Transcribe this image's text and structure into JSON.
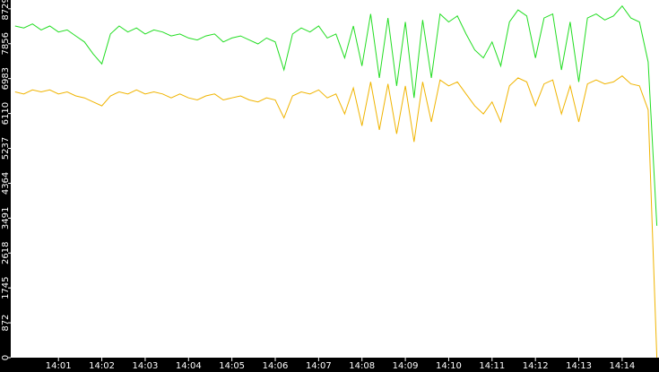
{
  "chart_data": {
    "type": "line",
    "x": [
      0,
      0.2,
      0.4,
      0.6,
      0.8,
      1,
      1.2,
      1.4,
      1.6,
      1.8,
      2,
      2.2,
      2.4,
      2.6,
      2.8,
      3,
      3.2,
      3.4,
      3.6,
      3.8,
      4,
      4.2,
      4.4,
      4.6,
      4.8,
      5,
      5.2,
      5.4,
      5.6,
      5.8,
      6,
      6.2,
      6.4,
      6.6,
      6.8,
      7,
      7.2,
      7.4,
      7.6,
      7.8,
      8,
      8.2,
      8.4,
      8.6,
      8.8,
      9,
      9.2,
      9.4,
      9.6,
      9.8,
      10,
      10.2,
      10.4,
      10.6,
      10.8,
      11,
      11.2,
      11.4,
      11.6,
      11.8,
      12,
      12.2,
      12.4,
      12.6,
      12.8,
      13,
      13.2,
      13.4,
      13.6,
      13.8,
      14,
      14.2,
      14.4,
      14.6,
      14.8
    ],
    "series": [
      {
        "color": "#22dd22",
        "values": [
          8300,
          8250,
          8350,
          8200,
          8300,
          8150,
          8200,
          8050,
          7900,
          7600,
          7350,
          8100,
          8300,
          8150,
          8250,
          8100,
          8200,
          8150,
          8050,
          8100,
          8000,
          7950,
          8050,
          8100,
          7900,
          8000,
          8050,
          7950,
          7850,
          8000,
          7900,
          7200,
          8100,
          8250,
          8150,
          8300,
          8000,
          8100,
          7500,
          8300,
          7300,
          8600,
          7000,
          8500,
          6800,
          8400,
          6500,
          8450,
          7000,
          8600,
          8400,
          8550,
          8100,
          7700,
          7500,
          7900,
          7300,
          8400,
          8700,
          8550,
          7500,
          8500,
          8600,
          7200,
          8400,
          6900,
          8500,
          8600,
          8450,
          8550,
          8800,
          8500,
          8400,
          7400,
          3300
        ]
      },
      {
        "color": "#f0b400",
        "values": [
          6650,
          6600,
          6700,
          6650,
          6700,
          6600,
          6650,
          6550,
          6500,
          6400,
          6300,
          6550,
          6650,
          6600,
          6700,
          6600,
          6650,
          6600,
          6500,
          6600,
          6500,
          6450,
          6550,
          6600,
          6450,
          6500,
          6550,
          6450,
          6400,
          6500,
          6450,
          6000,
          6550,
          6650,
          6600,
          6700,
          6500,
          6600,
          6100,
          6750,
          5800,
          6900,
          5700,
          6850,
          5600,
          6800,
          5400,
          6900,
          5900,
          6950,
          6800,
          6900,
          6600,
          6300,
          6100,
          6400,
          5900,
          6800,
          7000,
          6900,
          6300,
          6850,
          6950,
          6100,
          6800,
          5900,
          6850,
          6950,
          6850,
          6900,
          7050,
          6850,
          6800,
          6200,
          0
        ]
      }
    ],
    "xlim": [
      -0.1,
      14.85
    ],
    "xticks": [
      {
        "value": 1,
        "label": "14:01"
      },
      {
        "value": 2,
        "label": "14:02"
      },
      {
        "value": 3,
        "label": "14:03"
      },
      {
        "value": 4,
        "label": "14:04"
      },
      {
        "value": 5,
        "label": "14:05"
      },
      {
        "value": 6,
        "label": "14:06"
      },
      {
        "value": 7,
        "label": "14:07"
      },
      {
        "value": 8,
        "label": "14:08"
      },
      {
        "value": 9,
        "label": "14:09"
      },
      {
        "value": 10,
        "label": "14:10"
      },
      {
        "value": 11,
        "label": "14:11"
      },
      {
        "value": 12,
        "label": "14:12"
      },
      {
        "value": 13,
        "label": "14:13"
      },
      {
        "value": 14,
        "label": "14:14"
      }
    ],
    "ylim": [
      0,
      8950
    ],
    "yticks": [
      0,
      872,
      1745,
      2618,
      3491,
      4364,
      5237,
      6110,
      6983,
      7856,
      8729
    ]
  }
}
